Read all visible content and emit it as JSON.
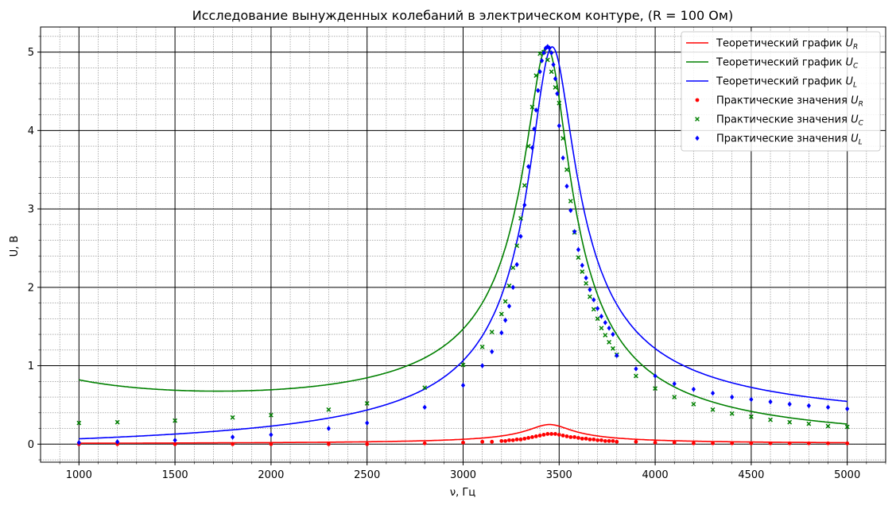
{
  "chart_data": {
    "type": "line",
    "title": "Исследование вынужденных колебаний в электрическом контуре, (R = 100 Ом)",
    "xlabel": "ν, Гц",
    "ylabel": "U, В",
    "xlabel_color": "#0000ff",
    "ylabel_color": "#ff0000",
    "xlim": [
      800,
      5200
    ],
    "ylim": [
      -0.23,
      5.32
    ],
    "x_ticks": [
      1000,
      1500,
      2000,
      2500,
      3000,
      3500,
      4000,
      4500,
      5000
    ],
    "y_ticks": [
      0,
      1,
      2,
      3,
      4,
      5
    ],
    "grid": true,
    "minor_grid": true,
    "legend_position": "top-right",
    "theoretical": [
      {
        "name_prefix": "Теоретический график ",
        "name_symbol": "U",
        "name_sub": "R",
        "color": "#ff0000",
        "peak": 0.25,
        "offset": 0,
        "low_mult": 0,
        "high_mult": 0
      },
      {
        "name_prefix": "Теоретический график ",
        "name_symbol": "U",
        "name_sub": "C",
        "color": "#008000",
        "peak": 5.05,
        "offset": -10,
        "low_mult": 1.0,
        "high_mult": 0
      },
      {
        "name_prefix": "Теоретический график ",
        "name_symbol": "U",
        "name_sub": "L",
        "color": "#0000ff",
        "peak": 5.05,
        "offset": 10,
        "low_mult": 0,
        "high_mult": 1.0
      }
    ],
    "practical": [
      {
        "name_prefix": "Практические значения ",
        "name_symbol": "U",
        "name_sub": "R",
        "color": "#ff0000",
        "marker": "circle",
        "x": [
          1000,
          1200,
          1500,
          1800,
          2000,
          2300,
          2500,
          2800,
          3000,
          3100,
          3150,
          3200,
          3220,
          3240,
          3260,
          3280,
          3300,
          3320,
          3340,
          3360,
          3380,
          3400,
          3420,
          3440,
          3460,
          3480,
          3500,
          3520,
          3540,
          3560,
          3580,
          3600,
          3620,
          3640,
          3660,
          3680,
          3700,
          3720,
          3740,
          3760,
          3780,
          3800,
          3900,
          4000,
          4100,
          4200,
          4300,
          4400,
          4500,
          4600,
          4700,
          4800,
          4900,
          5000
        ],
        "y": [
          0.0,
          0.0,
          0.0,
          0.0,
          0.0,
          0.0,
          0.0,
          0.01,
          0.02,
          0.03,
          0.03,
          0.04,
          0.04,
          0.05,
          0.05,
          0.06,
          0.06,
          0.07,
          0.08,
          0.09,
          0.1,
          0.11,
          0.12,
          0.13,
          0.13,
          0.13,
          0.12,
          0.11,
          0.1,
          0.09,
          0.09,
          0.08,
          0.07,
          0.07,
          0.06,
          0.06,
          0.05,
          0.05,
          0.04,
          0.04,
          0.04,
          0.03,
          0.03,
          0.02,
          0.02,
          0.01,
          0.01,
          0.01,
          0.01,
          0.01,
          0.01,
          0.01,
          0.01,
          0.01
        ]
      },
      {
        "name_prefix": "Практические значения ",
        "name_symbol": "U",
        "name_sub": "C",
        "color": "#008000",
        "marker": "x",
        "x": [
          1000,
          1200,
          1500,
          1800,
          2000,
          2300,
          2500,
          2800,
          3000,
          3100,
          3150,
          3200,
          3220,
          3240,
          3260,
          3280,
          3300,
          3320,
          3340,
          3360,
          3380,
          3400,
          3420,
          3440,
          3460,
          3480,
          3500,
          3520,
          3540,
          3560,
          3580,
          3600,
          3620,
          3640,
          3660,
          3680,
          3700,
          3720,
          3740,
          3760,
          3780,
          3800,
          3900,
          4000,
          4100,
          4200,
          4300,
          4400,
          4500,
          4600,
          4700,
          4800,
          4900,
          5000
        ],
        "y": [
          0.27,
          0.28,
          0.3,
          0.34,
          0.37,
          0.44,
          0.52,
          0.72,
          1.01,
          1.24,
          1.43,
          1.66,
          1.82,
          2.02,
          2.25,
          2.53,
          2.88,
          3.3,
          3.8,
          4.3,
          4.7,
          4.98,
          5.0,
          4.9,
          4.75,
          4.55,
          4.35,
          3.9,
          3.5,
          3.1,
          2.7,
          2.38,
          2.2,
          2.05,
          1.88,
          1.72,
          1.6,
          1.48,
          1.39,
          1.3,
          1.22,
          1.14,
          0.87,
          0.71,
          0.6,
          0.51,
          0.44,
          0.39,
          0.35,
          0.31,
          0.28,
          0.26,
          0.23,
          0.22
        ]
      },
      {
        "name_prefix": "Практические значения ",
        "name_symbol": "U",
        "name_sub": "L",
        "color": "#0000ff",
        "marker": "diamond",
        "x": [
          1000,
          1200,
          1500,
          1800,
          2000,
          2300,
          2500,
          2800,
          3000,
          3100,
          3150,
          3200,
          3220,
          3240,
          3260,
          3280,
          3300,
          3320,
          3340,
          3360,
          3370,
          3380,
          3390,
          3400,
          3410,
          3420,
          3430,
          3440,
          3450,
          3460,
          3470,
          3480,
          3490,
          3500,
          3520,
          3540,
          3560,
          3580,
          3600,
          3620,
          3640,
          3660,
          3680,
          3700,
          3720,
          3740,
          3760,
          3780,
          3800,
          3900,
          4000,
          4100,
          4200,
          4300,
          4400,
          4500,
          4600,
          4700,
          4800,
          4900,
          5000
        ],
        "y": [
          0.02,
          0.03,
          0.05,
          0.09,
          0.12,
          0.2,
          0.27,
          0.47,
          0.75,
          1.0,
          1.18,
          1.42,
          1.58,
          1.76,
          2.0,
          2.29,
          2.65,
          3.05,
          3.54,
          3.78,
          4.02,
          4.26,
          4.51,
          4.75,
          4.89,
          4.99,
          5.05,
          5.07,
          5.05,
          4.99,
          4.84,
          4.66,
          4.47,
          4.06,
          3.65,
          3.29,
          2.98,
          2.71,
          2.48,
          2.28,
          2.12,
          1.97,
          1.84,
          1.73,
          1.63,
          1.55,
          1.48,
          1.4,
          1.13,
          0.96,
          0.87,
          0.77,
          0.7,
          0.65,
          0.6,
          0.57,
          0.54,
          0.51,
          0.49,
          0.47,
          0.45
        ]
      }
    ]
  }
}
